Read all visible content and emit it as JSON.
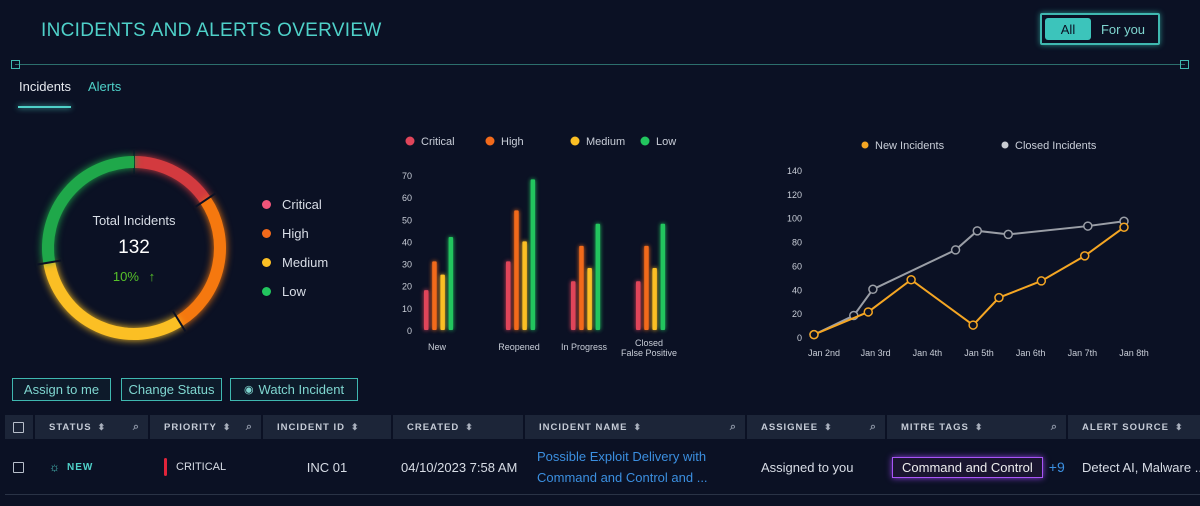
{
  "header": {
    "title": "INCIDENTS AND ALERTS OVERVIEW",
    "toggle": [
      "All",
      "For you"
    ],
    "toggle_selected": "All"
  },
  "tabs": [
    {
      "label": "Incidents",
      "active": true
    },
    {
      "label": "Alerts",
      "active": false
    }
  ],
  "colors": {
    "accent": "#4fd1c9",
    "critical": "#e0455a",
    "high": "#f26a1b",
    "medium": "#fbbf24",
    "low": "#22c55e",
    "new_line": "#f5a623",
    "closed_line": "#9a9ea6",
    "link": "#3b8fe0",
    "tag_border": "#a855f7",
    "up": "#56c12a"
  },
  "donut": {
    "label": "Total Incidents",
    "total": "132",
    "change": "10%",
    "change_direction": "up",
    "legend": [
      "Critical",
      "High",
      "Medium",
      "Low"
    ],
    "shares_percent": [
      15.6,
      25.6,
      31.1,
      27.7
    ]
  },
  "chart_data": [
    {
      "type": "bar",
      "legend": [
        "Critical",
        "High",
        "Medium",
        "Low"
      ],
      "legend_placement": "top",
      "categories": [
        "New",
        "Reopened",
        "In Progress",
        "Closed\nFalse Positive"
      ],
      "series": [
        {
          "name": "Critical",
          "values": [
            18,
            31,
            22,
            22
          ]
        },
        {
          "name": "High",
          "values": [
            31,
            54,
            38,
            38
          ]
        },
        {
          "name": "Medium",
          "values": [
            25,
            40,
            28,
            28
          ]
        },
        {
          "name": "Low",
          "values": [
            42,
            68,
            48,
            48
          ]
        }
      ],
      "yticks": [
        0,
        10,
        20,
        30,
        40,
        50,
        60,
        70
      ],
      "ylim": [
        0,
        70
      ],
      "grid": false
    },
    {
      "type": "line",
      "legend": [
        "New Incidents",
        "Closed Incidents"
      ],
      "legend_placement": "top",
      "xticks": [
        "Jan 2nd",
        "Jan 3rd",
        "Jan 4th",
        "Jan 5th",
        "Jan 6th",
        "Jan 7th",
        "Jan 8th"
      ],
      "xlim_day": [
        2,
        8
      ],
      "yticks": [
        0,
        20,
        40,
        60,
        80,
        100,
        120,
        140
      ],
      "ylim": [
        0,
        140
      ],
      "grid": false,
      "series": [
        {
          "name": "New Incidents",
          "x_day": [
            2,
            3.05,
            3.88,
            5.08,
            5.58,
            6.4,
            7.24,
            8
          ],
          "values": [
            2,
            21,
            48,
            10,
            33,
            47,
            68,
            92
          ]
        },
        {
          "name": "Closed Incidents",
          "x_day": [
            2,
            2.77,
            3.14,
            4.74,
            5.16,
            5.76,
            7.3,
            8
          ],
          "values": [
            2,
            18,
            40,
            73,
            89,
            86,
            93,
            97
          ]
        }
      ]
    }
  ],
  "actions": {
    "assign": "Assign to me",
    "change_status": "Change Status",
    "watch": "Watch Incident"
  },
  "table": {
    "columns": [
      {
        "label": "STATUS",
        "search": true
      },
      {
        "label": "PRIORITY",
        "search": true
      },
      {
        "label": "INCIDENT ID",
        "search": false
      },
      {
        "label": "CREATED",
        "search": false
      },
      {
        "label": "INCIDENT NAME",
        "search": true
      },
      {
        "label": "ASSIGNEE",
        "search": true
      },
      {
        "label": "MITRE TAGS",
        "search": true
      },
      {
        "label": "ALERT SOURCE",
        "search": false
      }
    ],
    "rows": [
      {
        "status": "NEW",
        "priority": "CRITICAL",
        "id": "INC 01",
        "created": "04/10/2023 7:58 AM",
        "name_line1": "Possible Exploit Delivery with",
        "name_line2": "Command and Control and ...",
        "assignee": "Assigned to you",
        "tag": "Command and Control",
        "tag_more": "+9",
        "source": "Detect AI, Malware ..."
      }
    ]
  }
}
